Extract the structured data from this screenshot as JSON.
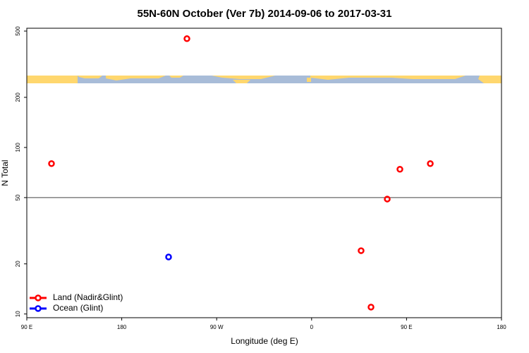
{
  "chart_data": {
    "type": "scatter",
    "title": "55N-60N October (Ver 7b)   2014-09-06 to 2017-03-31",
    "x_label": "Longitude (deg E)",
    "y_label": "N Total",
    "log_y": true,
    "xlim": [
      90,
      540
    ],
    "ylim": [
      9.5,
      520
    ],
    "xticks": [
      {
        "value": 90,
        "label": "90 E"
      },
      180,
      {
        "value": 270,
        "label": "90 W"
      },
      {
        "value": 360,
        "label": "0"
      },
      {
        "value": 450,
        "label": "90 E"
      },
      {
        "value": 540,
        "label": "180"
      }
    ],
    "yticks": [
      10,
      20,
      50,
      100,
      200,
      500
    ],
    "hline": 50,
    "legend": "lower left",
    "series": [
      {
        "name": "Land (Nadir&Glint)",
        "color": "#ff0000",
        "x": [
          113.4,
          241.8,
          406.9,
          416.3,
          431.7,
          443.7,
          472.5
        ],
        "values": [
          80,
          450,
          24,
          11,
          49,
          74,
          80
        ]
      },
      {
        "name": "Ocean (Glint)",
        "color": "#0000ff",
        "x": [
          224.4
        ],
        "values": [
          22
        ]
      }
    ]
  }
}
